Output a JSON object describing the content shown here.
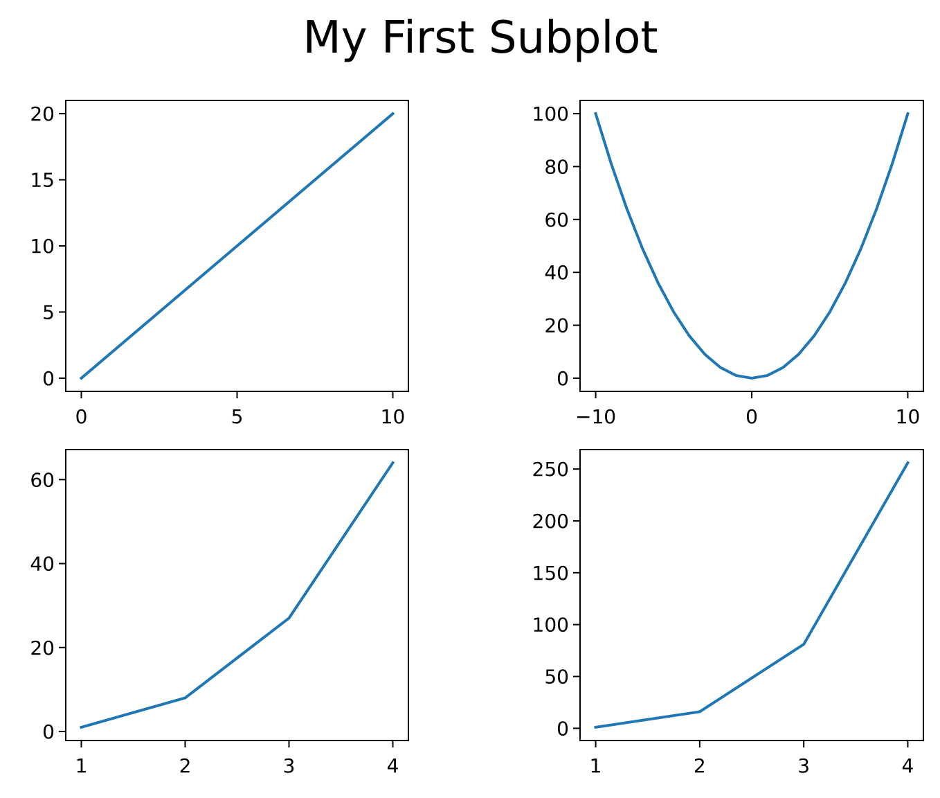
{
  "figure": {
    "suptitle": "My First Subplot"
  },
  "style": {
    "line_color": "#1f77b4",
    "axes_color": "#000000",
    "background": "#ffffff"
  },
  "chart_data": [
    {
      "type": "line",
      "title": "",
      "xlabel": "",
      "ylabel": "",
      "x": [
        0,
        10
      ],
      "series": [
        {
          "values": [
            0,
            20
          ]
        }
      ],
      "xlim": [
        -0.5,
        10.5
      ],
      "ylim": [
        -1,
        21
      ],
      "xticks": [
        0,
        5,
        10
      ],
      "xtick_labels": [
        "0",
        "5",
        "10"
      ],
      "yticks": [
        0,
        5,
        10,
        15,
        20
      ],
      "ytick_labels": [
        "0",
        "5",
        "10",
        "15",
        "20"
      ],
      "grid": false
    },
    {
      "type": "line",
      "title": "",
      "xlabel": "",
      "ylabel": "",
      "x": [
        -10,
        -9,
        -8,
        -7,
        -6,
        -5,
        -4,
        -3,
        -2,
        -1,
        0,
        1,
        2,
        3,
        4,
        5,
        6,
        7,
        8,
        9,
        10
      ],
      "series": [
        {
          "values": [
            100,
            81,
            64,
            49,
            36,
            25,
            16,
            9,
            4,
            1,
            0,
            1,
            4,
            9,
            16,
            25,
            36,
            49,
            64,
            81,
            100
          ]
        }
      ],
      "xlim": [
        -11,
        11
      ],
      "ylim": [
        -5,
        105
      ],
      "xticks": [
        -10,
        0,
        10
      ],
      "xtick_labels": [
        "−10",
        "0",
        "10"
      ],
      "yticks": [
        0,
        20,
        40,
        60,
        80,
        100
      ],
      "ytick_labels": [
        "0",
        "20",
        "40",
        "60",
        "80",
        "100"
      ],
      "grid": false
    },
    {
      "type": "line",
      "title": "",
      "xlabel": "",
      "ylabel": "",
      "x": [
        1,
        2,
        3,
        4
      ],
      "series": [
        {
          "values": [
            1,
            8,
            27,
            64
          ]
        }
      ],
      "xlim": [
        0.85,
        4.15
      ],
      "ylim": [
        -2.15,
        67.15
      ],
      "xticks": [
        1,
        2,
        3,
        4
      ],
      "xtick_labels": [
        "1",
        "2",
        "3",
        "4"
      ],
      "yticks": [
        0,
        20,
        40,
        60
      ],
      "ytick_labels": [
        "0",
        "20",
        "40",
        "60"
      ],
      "grid": false
    },
    {
      "type": "line",
      "title": "",
      "xlabel": "",
      "ylabel": "",
      "x": [
        1,
        2,
        3,
        4
      ],
      "series": [
        {
          "values": [
            1,
            16,
            81,
            256
          ]
        }
      ],
      "xlim": [
        0.85,
        4.15
      ],
      "ylim": [
        -11.75,
        268.75
      ],
      "xticks": [
        1,
        2,
        3,
        4
      ],
      "xtick_labels": [
        "1",
        "2",
        "3",
        "4"
      ],
      "yticks": [
        0,
        50,
        100,
        150,
        200,
        250
      ],
      "ytick_labels": [
        "0",
        "50",
        "100",
        "150",
        "200",
        "250"
      ],
      "grid": false
    }
  ]
}
